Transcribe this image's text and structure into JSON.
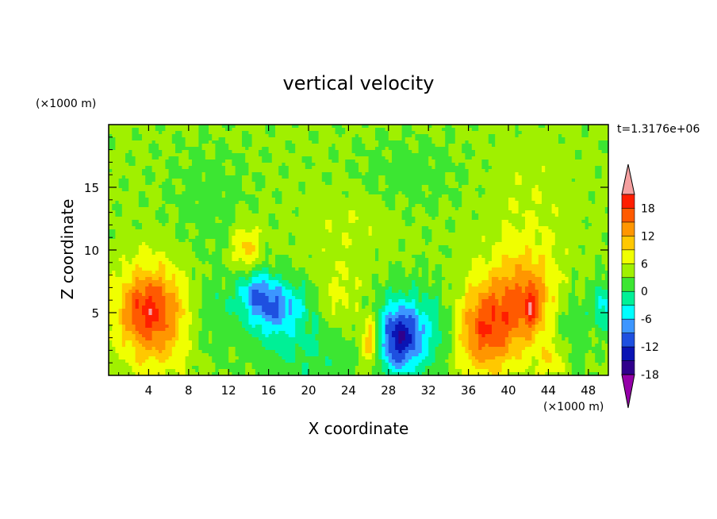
{
  "chart_data": {
    "type": "heatmap",
    "title": "vertical velocity",
    "xlabel": "X coordinate",
    "ylabel": "Z coordinate",
    "x_unit": "(×1000 m)",
    "y_unit": "(×1000 m)",
    "time_label": "t=1.3176e+06",
    "xlim": [
      0,
      50
    ],
    "ylim": [
      0,
      20
    ],
    "x_ticks": [
      4,
      8,
      12,
      16,
      20,
      24,
      28,
      32,
      36,
      40,
      44,
      48
    ],
    "y_ticks": [
      5,
      10,
      15
    ],
    "colorbar": {
      "levels": [
        -21,
        -18,
        -15,
        -12,
        -9,
        -6,
        -3,
        0,
        3,
        6,
        9,
        12,
        15,
        18
      ],
      "tick_labels": [
        "18",
        "12",
        "6",
        "0",
        "-6",
        "-12",
        "-18"
      ],
      "tick_values": [
        18,
        12,
        6,
        0,
        -6,
        -12,
        -18
      ],
      "colors": [
        "#9400a8",
        "#30008c",
        "#0a14b4",
        "#1e50e0",
        "#3c96ff",
        "#00ffff",
        "#00f096",
        "#3ce632",
        "#a0f000",
        "#f0ff00",
        "#ffc800",
        "#ff9600",
        "#ff5a00",
        "#ff1e00",
        "#f5a0a0"
      ],
      "extend": "both"
    },
    "features": [
      {
        "x": 4.5,
        "z": 4.8,
        "sx": 2.4,
        "sz": 2.8,
        "amp": 13
      },
      {
        "x": 3.2,
        "z": 5.5,
        "sx": 1.5,
        "sz": 1.5,
        "amp": 4
      },
      {
        "x": 16.5,
        "z": 5.5,
        "sx": 2.0,
        "sz": 1.5,
        "amp": -11
      },
      {
        "x": 14.5,
        "z": 7.0,
        "sx": 1.3,
        "sz": 1.3,
        "amp": -7
      },
      {
        "x": 13.8,
        "z": 10.0,
        "sx": 1.0,
        "sz": 1.5,
        "amp": 7
      },
      {
        "x": 19.5,
        "z": 2.5,
        "sx": 4.0,
        "sz": 2.5,
        "amp": -4
      },
      {
        "x": 23.0,
        "z": 6.0,
        "sx": 1.5,
        "sz": 2.0,
        "amp": 4
      },
      {
        "x": 26.2,
        "z": 2.8,
        "sx": 0.7,
        "sz": 1.5,
        "amp": 10
      },
      {
        "x": 29.0,
        "z": 3.0,
        "sx": 1.6,
        "sz": 2.0,
        "amp": -16
      },
      {
        "x": 32.0,
        "z": 3.5,
        "sx": 2.2,
        "sz": 2.5,
        "amp": -5
      },
      {
        "x": 37.5,
        "z": 3.5,
        "sx": 2.0,
        "sz": 2.5,
        "amp": 12
      },
      {
        "x": 41.5,
        "z": 6.0,
        "sx": 2.6,
        "sz": 2.8,
        "amp": 11
      },
      {
        "x": 42.3,
        "z": 5.5,
        "sx": 0.6,
        "sz": 1.2,
        "amp": 6
      },
      {
        "x": 46.0,
        "z": 4.0,
        "sx": 1.5,
        "sz": 2.5,
        "amp": -4
      },
      {
        "x": 49.5,
        "z": 5.5,
        "sx": 0.7,
        "sz": 1.3,
        "amp": -8
      },
      {
        "x": 44.5,
        "z": 1.2,
        "sx": 1.0,
        "sz": 1.0,
        "amp": 5
      },
      {
        "x": 10.0,
        "z": 5.0,
        "sx": 1.5,
        "sz": 2.5,
        "amp": -3
      },
      {
        "x": 24.0,
        "z": 12.0,
        "sx": 3.0,
        "sz": 2.0,
        "amp": 2
      },
      {
        "x": 30.0,
        "z": 16.0,
        "sx": 4.0,
        "sz": 2.0,
        "amp": -2
      },
      {
        "x": 42.0,
        "z": 14.0,
        "sx": 3.0,
        "sz": 3.0,
        "amp": 2
      },
      {
        "x": 10.0,
        "z": 14.0,
        "sx": 3.0,
        "sz": 3.0,
        "amp": -2
      }
    ]
  }
}
